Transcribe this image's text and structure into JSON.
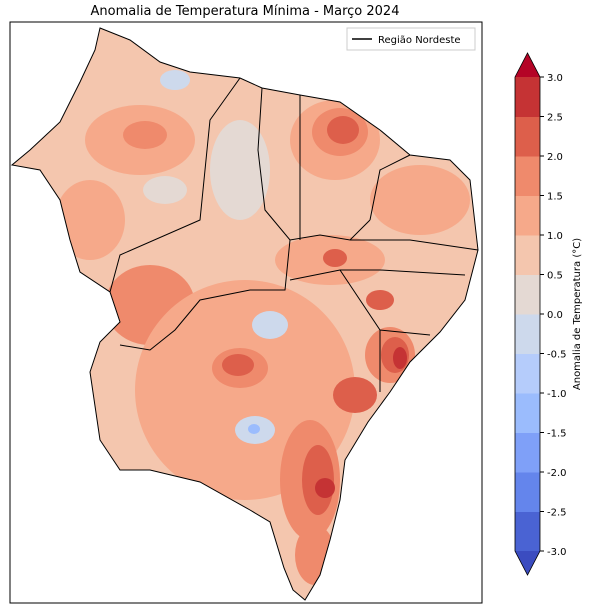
{
  "title": "Anomalia de Temperatura Mínima - Março 2024",
  "legend": {
    "label": "Região Nordeste"
  },
  "colorbar": {
    "label": "Anomalia de Temperatura (°C)",
    "lim": [
      -3,
      3
    ],
    "ticks": [
      {
        "value": 3,
        "label": "3.0"
      },
      {
        "value": 2.5,
        "label": "2.5"
      },
      {
        "value": 2,
        "label": "2.0"
      },
      {
        "value": 1.5,
        "label": "1.5"
      },
      {
        "value": 1,
        "label": "1.0"
      },
      {
        "value": 0.5,
        "label": "0.5"
      },
      {
        "value": 0,
        "label": "0.0"
      },
      {
        "value": -0.5,
        "label": "-0.5"
      },
      {
        "value": -1,
        "label": "-1.0"
      },
      {
        "value": -1.5,
        "label": "-1.5"
      },
      {
        "value": -2,
        "label": "-2.0"
      },
      {
        "value": -2.5,
        "label": "-2.5"
      },
      {
        "value": -3,
        "label": "-3.0"
      }
    ],
    "colors": [
      "#4a63d3",
      "#6485ec",
      "#7fa0f8",
      "#9bbcfd",
      "#b5ccfb",
      "#cdd9ec",
      "#e4d9d3",
      "#f4c6ae",
      "#f6a98a",
      "#ef8a6c",
      "#dd5f4b",
      "#c53334"
    ],
    "extend_colors": [
      "#3b4cc0",
      "#b40426"
    ]
  }
}
